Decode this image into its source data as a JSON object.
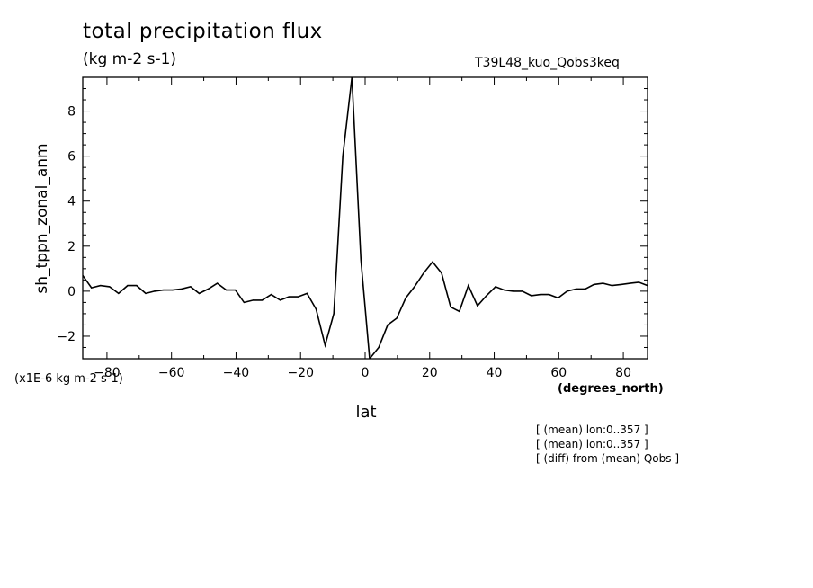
{
  "header": {
    "title": "total precipitation flux",
    "units": "(kg m-2 s-1)",
    "run_name": "T39L48_kuo_Qobs3keq"
  },
  "chart_data": {
    "type": "line",
    "xlabel": "lat",
    "ylabel": "sh_tppn_zonal_anm",
    "x_units_label": "(degrees_north)",
    "y_scale_label": "(x1E-6 kg m-2 s-1)",
    "xlim": [
      -87.5,
      87.5
    ],
    "ylim": [
      -3,
      9.5
    ],
    "x_ticks": [
      -80,
      -60,
      -40,
      -20,
      0,
      20,
      40,
      60,
      80
    ],
    "y_ticks": [
      -2,
      0,
      2,
      4,
      6,
      8
    ],
    "series": [
      {
        "color": "#000000",
        "x": [
          -87.5,
          -84.8,
          -82.0,
          -79.2,
          -76.4,
          -73.6,
          -70.8,
          -68.0,
          -65.3,
          -62.5,
          -59.7,
          -56.9,
          -54.1,
          -51.4,
          -48.6,
          -45.8,
          -43.0,
          -40.2,
          -37.5,
          -34.7,
          -31.9,
          -29.1,
          -26.3,
          -23.6,
          -20.8,
          -18.0,
          -15.2,
          -12.4,
          -9.7,
          -6.9,
          -4.1,
          -1.3,
          1.4,
          4.2,
          7.0,
          9.8,
          12.6,
          15.3,
          18.1,
          20.9,
          23.7,
          26.5,
          29.2,
          32.0,
          34.8,
          37.6,
          40.4,
          43.1,
          45.9,
          48.7,
          51.5,
          54.3,
          57.0,
          59.8,
          62.6,
          65.4,
          68.2,
          70.9,
          73.7,
          76.5,
          79.3,
          82.1,
          84.8,
          87.5
        ],
        "y": [
          0.7,
          0.15,
          0.25,
          0.2,
          -0.1,
          0.25,
          0.25,
          -0.1,
          0.0,
          0.05,
          0.05,
          0.1,
          0.2,
          -0.1,
          0.1,
          0.35,
          0.05,
          0.05,
          -0.5,
          -0.4,
          -0.4,
          -0.15,
          -0.4,
          -0.25,
          -0.25,
          -0.1,
          -0.8,
          -2.4,
          -1.0,
          6.0,
          9.5,
          1.4,
          -3.0,
          -2.5,
          -1.5,
          -1.2,
          -0.3,
          0.2,
          0.8,
          1.3,
          0.8,
          -0.7,
          -0.9,
          0.25,
          -0.65,
          -0.2,
          0.2,
          0.05,
          0.0,
          0.0,
          -0.2,
          -0.15,
          -0.15,
          -0.3,
          0.0,
          0.1,
          0.1,
          0.3,
          0.35,
          0.25,
          0.3,
          0.35,
          0.4,
          0.25
        ]
      }
    ]
  },
  "footnotes": [
    "[ (mean) lon:0..357 ]",
    "[ (mean) lon:0..357 ]",
    "[ (diff) from (mean) Qobs ]"
  ]
}
